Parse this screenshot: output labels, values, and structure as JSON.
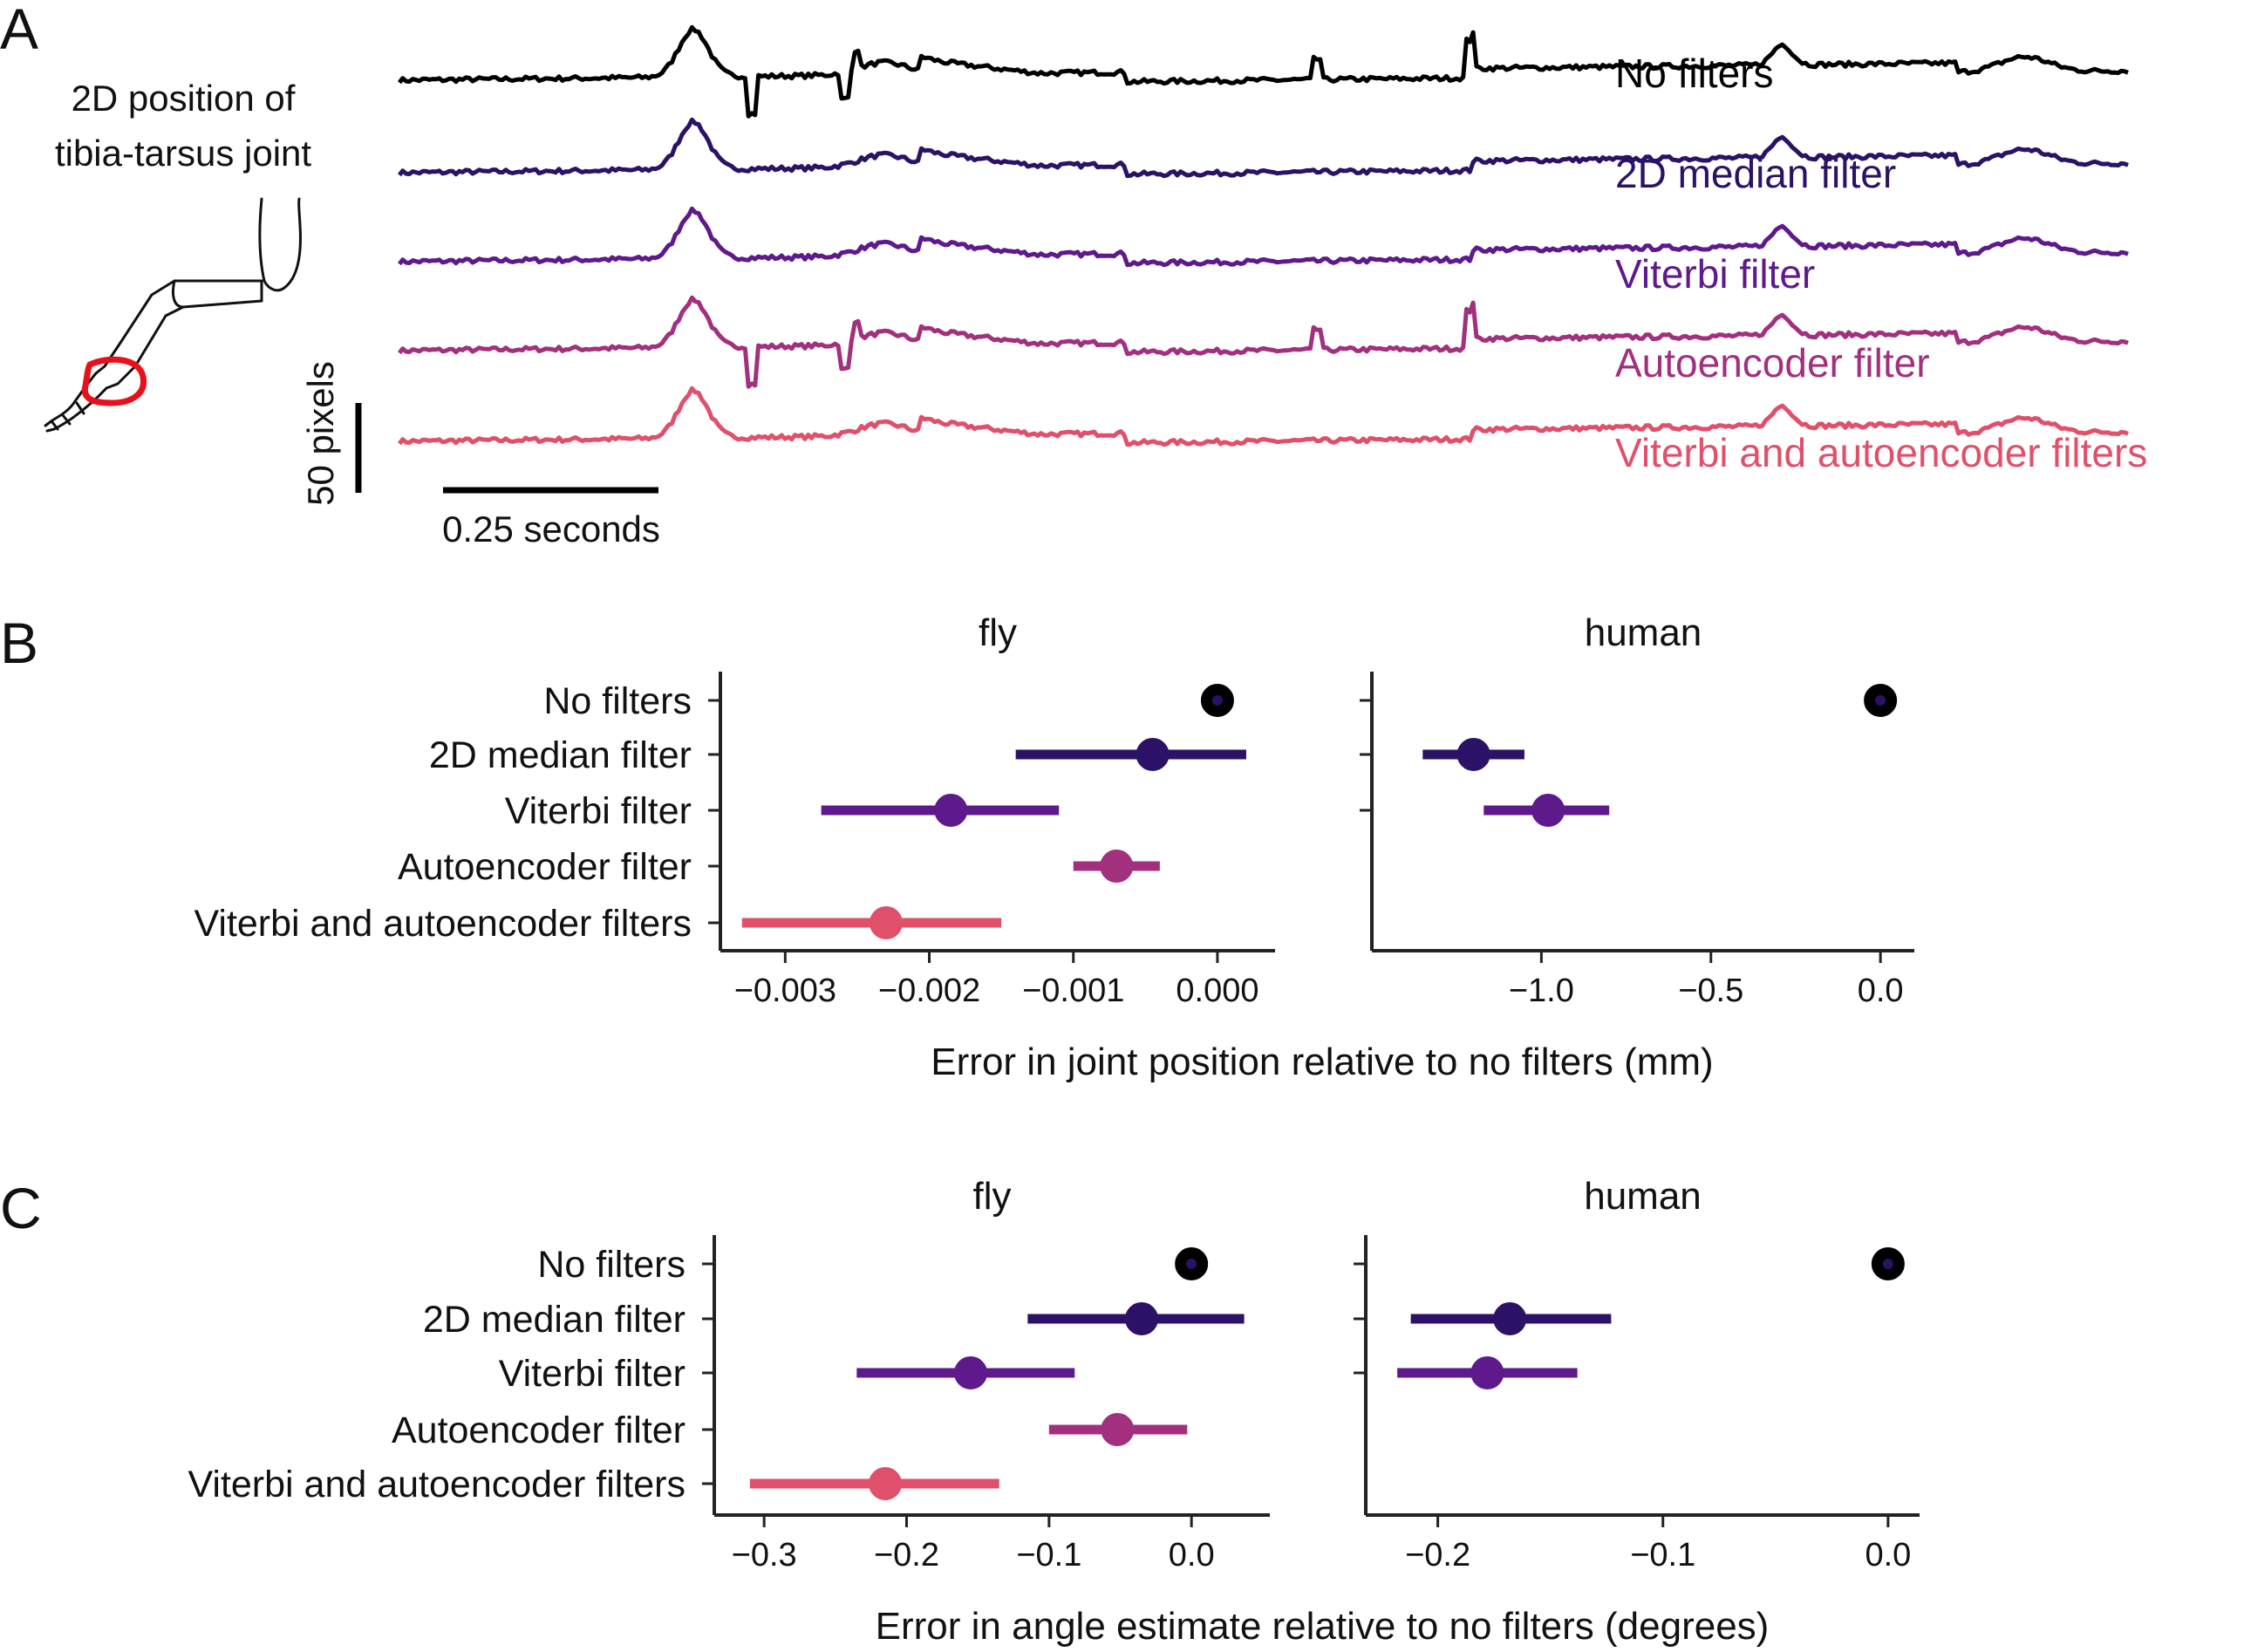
{
  "panel_a": {
    "letter": "A",
    "diagram_label": [
      "2D position of",
      "tibia-tarsus joint"
    ],
    "scale_y": "50 pixels",
    "scale_x": "0.25 seconds",
    "highlight_color": "#e8101a",
    "traces": [
      {
        "name": "No filters",
        "color": "#000000",
        "artifacts": true
      },
      {
        "name": "2D median filter",
        "color": "#2b1266",
        "artifacts": false
      },
      {
        "name": "Viterbi filter",
        "color": "#5e1a8c",
        "artifacts": false
      },
      {
        "name": "Autoencoder filter",
        "color": "#a2307e",
        "artifacts": true
      },
      {
        "name": "Viterbi and autoencoder filters",
        "color": "#e0506a",
        "artifacts": false
      }
    ]
  },
  "chart_data": [
    {
      "panel": "B",
      "type": "scatter",
      "subtitle": "fly",
      "categories": [
        "No filters",
        "2D median filter",
        "Viterbi filter",
        "Autoencoder filter",
        "Viterbi and autoencoder filters"
      ],
      "colors": [
        "#000000",
        "#2b1266",
        "#5e1a8c",
        "#a2307e",
        "#e0506a"
      ],
      "values": [
        0.0,
        -0.00045,
        -0.00185,
        -0.0007,
        -0.0023
      ],
      "ci_low": [
        0.0,
        -0.0014,
        -0.00275,
        -0.001,
        -0.0033
      ],
      "ci_high": [
        0.0,
        0.0002,
        -0.0011,
        -0.0004,
        -0.0015
      ],
      "xlim": [
        -0.00345,
        0.0004
      ],
      "xticks": [
        -0.003,
        -0.002,
        -0.001,
        0.0
      ],
      "xtick_labels": [
        "−0.003",
        "−0.002",
        "−0.001",
        "0.000"
      ],
      "xlabel": "Error in joint position relative to no filters (mm)"
    },
    {
      "panel": "B",
      "type": "scatter",
      "subtitle": "human",
      "categories": [
        "No filters",
        "2D median filter",
        "Viterbi filter"
      ],
      "colors": [
        "#000000",
        "#2b1266",
        "#5e1a8c"
      ],
      "values": [
        0.0,
        -1.2,
        -0.98
      ],
      "ci_low": [
        0.0,
        -1.35,
        -1.17
      ],
      "ci_high": [
        0.0,
        -1.05,
        -0.8
      ],
      "xlim": [
        -1.5,
        0.1
      ],
      "xticks": [
        -1.0,
        -0.5,
        0.0
      ],
      "xtick_labels": [
        "−1.0",
        "−0.5",
        "0.0"
      ],
      "xlabel": ""
    },
    {
      "panel": "C",
      "type": "scatter",
      "subtitle": "fly",
      "categories": [
        "No filters",
        "2D median filter",
        "Viterbi filter",
        "Autoencoder filter",
        "Viterbi and autoencoder filters"
      ],
      "colors": [
        "#000000",
        "#2b1266",
        "#5e1a8c",
        "#a2307e",
        "#e0506a"
      ],
      "values": [
        0.0,
        -0.035,
        -0.155,
        -0.052,
        -0.215
      ],
      "ci_low": [
        0.0,
        -0.115,
        -0.235,
        -0.1,
        -0.31
      ],
      "ci_high": [
        0.0,
        0.037,
        -0.082,
        -0.003,
        -0.135
      ],
      "xlim": [
        -0.335,
        0.055
      ],
      "xticks": [
        -0.3,
        -0.2,
        -0.1,
        0.0
      ],
      "xtick_labels": [
        "−0.3",
        "−0.2",
        "−0.1",
        "0.0"
      ],
      "xlabel": "Error in angle estimate relative to no filters (degrees)"
    },
    {
      "panel": "C",
      "type": "scatter",
      "subtitle": "human",
      "categories": [
        "No filters",
        "2D median filter",
        "Viterbi filter"
      ],
      "colors": [
        "#000000",
        "#2b1266",
        "#5e1a8c"
      ],
      "values": [
        0.0,
        -0.168,
        -0.178
      ],
      "ci_low": [
        0.0,
        -0.212,
        -0.218
      ],
      "ci_high": [
        0.0,
        -0.123,
        -0.138
      ],
      "xlim": [
        -0.232,
        0.014
      ],
      "xticks": [
        -0.2,
        -0.1,
        0.0
      ],
      "xtick_labels": [
        "−0.2",
        "−0.1",
        "0.0"
      ],
      "xlabel": ""
    }
  ],
  "panel_b": {
    "letter": "B"
  },
  "panel_c": {
    "letter": "C"
  }
}
